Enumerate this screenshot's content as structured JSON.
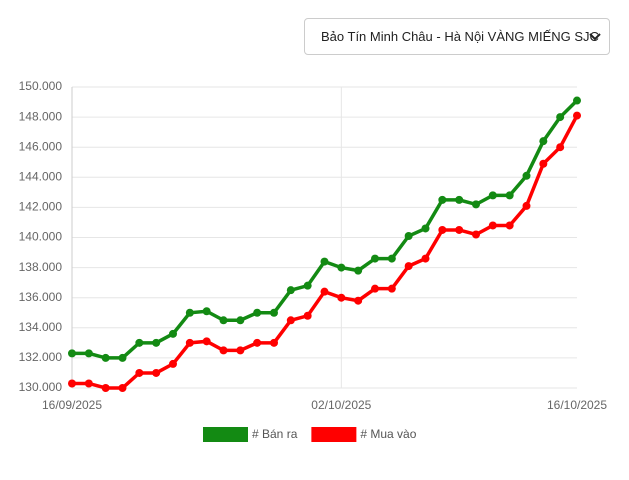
{
  "dropdown": {
    "selected": "Bảo Tín Minh Châu - Hà Nội VÀNG MIẾNG SJC"
  },
  "chart_data": {
    "type": "line",
    "categories": [
      "16/09/2025",
      null,
      null,
      null,
      null,
      null,
      null,
      null,
      null,
      null,
      null,
      null,
      null,
      null,
      null,
      null,
      "02/10/2025",
      null,
      null,
      null,
      null,
      null,
      null,
      null,
      null,
      null,
      null,
      null,
      null,
      null,
      "16/10/2025"
    ],
    "series": [
      {
        "name": "# Bán ra",
        "color": "#138a13",
        "values": [
          132300,
          132300,
          132000,
          132000,
          133000,
          133000,
          133600,
          135000,
          135100,
          134500,
          134500,
          135000,
          135000,
          136500,
          136800,
          138400,
          138000,
          137800,
          138600,
          138600,
          140100,
          140600,
          142500,
          142500,
          142200,
          142800,
          142800,
          144100,
          146400,
          148000,
          149100
        ]
      },
      {
        "name": "# Mua vào",
        "color": "#ff0000",
        "values": [
          130300,
          130300,
          130000,
          130000,
          131000,
          131000,
          131600,
          133000,
          133100,
          132500,
          132500,
          133000,
          133000,
          134500,
          134800,
          136400,
          136000,
          135800,
          136600,
          136600,
          138100,
          138600,
          140500,
          140500,
          140200,
          140800,
          140800,
          142100,
          144900,
          146000,
          148100
        ]
      }
    ],
    "ylim": [
      130000,
      150000
    ],
    "yticks": [
      {
        "value": 130000,
        "label": "130.000"
      },
      {
        "value": 132000,
        "label": "132.000"
      },
      {
        "value": 134000,
        "label": "134.000"
      },
      {
        "value": 136000,
        "label": "136.000"
      },
      {
        "value": 138000,
        "label": "138.000"
      },
      {
        "value": 140000,
        "label": "140.000"
      },
      {
        "value": 142000,
        "label": "142.000"
      },
      {
        "value": 144000,
        "label": "144.000"
      },
      {
        "value": 146000,
        "label": "146.000"
      },
      {
        "value": 148000,
        "label": "148.000"
      },
      {
        "value": 150000,
        "label": "150.000"
      }
    ],
    "grid": true,
    "legend": "bottom"
  }
}
